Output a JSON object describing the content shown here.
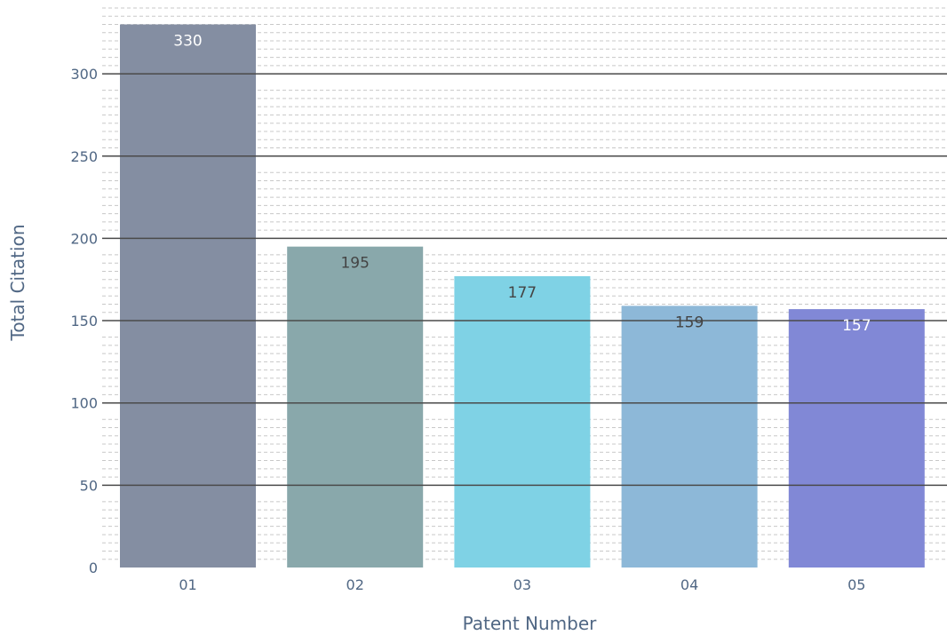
{
  "chart_data": {
    "type": "bar",
    "categories": [
      "01",
      "02",
      "03",
      "04",
      "05"
    ],
    "values": [
      330,
      195,
      177,
      159,
      157
    ],
    "data_labels": [
      "330",
      "195",
      "177",
      "159",
      "157"
    ],
    "colors": [
      "#848ea2",
      "#89a8ab",
      "#7fd2e5",
      "#8db8d8",
      "#8188d6"
    ],
    "label_colors": [
      "#ffffff",
      "#444444",
      "#444444",
      "#444444",
      "#ffffff"
    ],
    "xlabel": "Patent Number",
    "ylabel": "Total Citation",
    "ylim": [
      0,
      340
    ],
    "yticks": [
      0,
      50,
      100,
      150,
      200,
      250,
      300
    ],
    "major_grid_color": "#4a4a4a",
    "minor_grid_color": "#c8c8c8",
    "grid": true
  }
}
